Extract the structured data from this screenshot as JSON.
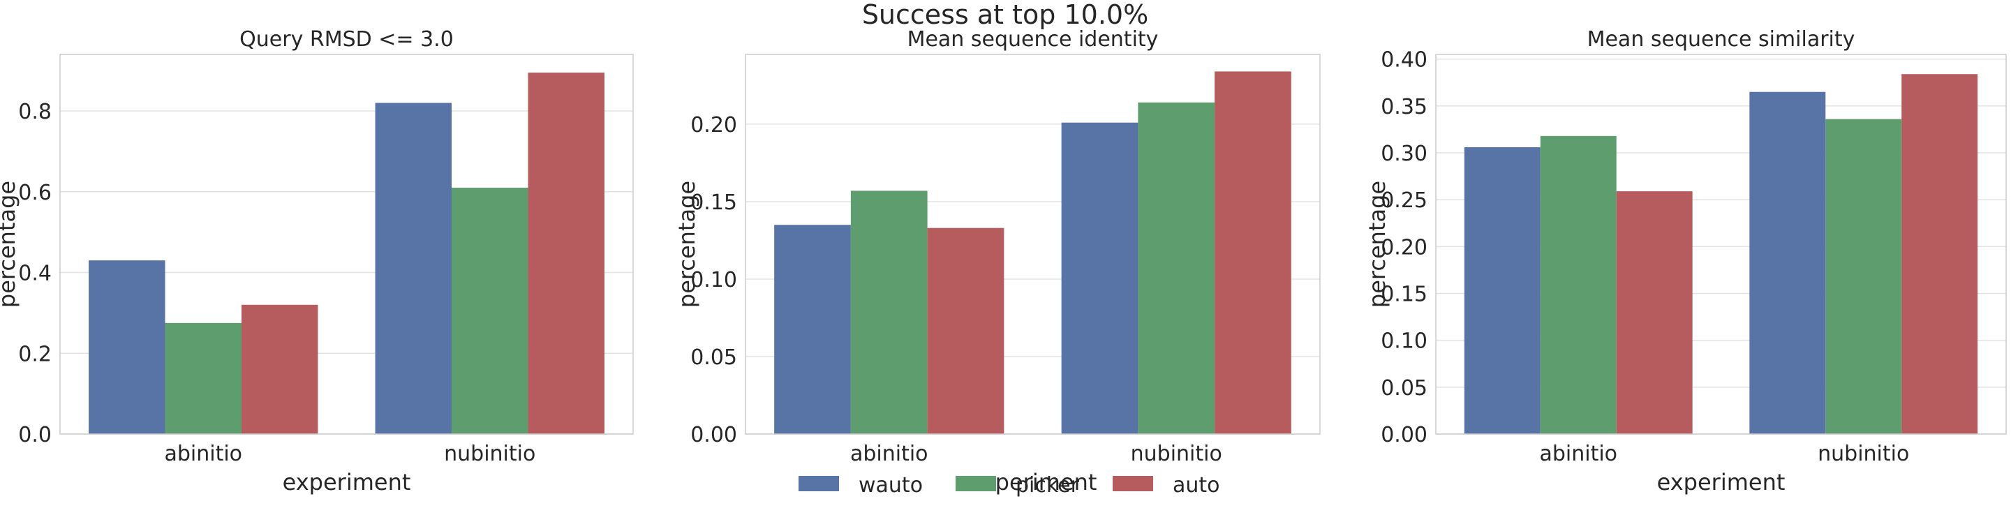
{
  "suptitle": "Success at top 10.0%",
  "legend": {
    "placement": "bottom-center",
    "entries": [
      {
        "label": "wauto",
        "color": "#5874a6"
      },
      {
        "label": "picker",
        "color": "#5e9e6e"
      },
      {
        "label": "auto",
        "color": "#b75c5e"
      }
    ]
  },
  "chart_data": [
    {
      "type": "bar",
      "title": "Query RMSD <= 3.0",
      "xlabel": "experiment",
      "ylabel": "percentage",
      "categories": [
        "abinitio",
        "nubinitio"
      ],
      "ylim": [
        0,
        0.94
      ],
      "yticks": [
        0.0,
        0.2,
        0.4,
        0.6,
        0.8
      ],
      "yticklabels": [
        "0.0",
        "0.2",
        "0.4",
        "0.6",
        "0.8"
      ],
      "grid": true,
      "series": [
        {
          "name": "wauto",
          "values": [
            0.43,
            0.82
          ]
        },
        {
          "name": "picker",
          "values": [
            0.275,
            0.61
          ]
        },
        {
          "name": "auto",
          "values": [
            0.32,
            0.895
          ]
        }
      ]
    },
    {
      "type": "bar",
      "title": "Mean sequence identity",
      "xlabel": "experiment",
      "ylabel": "percentage",
      "categories": [
        "abinitio",
        "nubinitio"
      ],
      "ylim": [
        0,
        0.245
      ],
      "yticks": [
        0.0,
        0.05,
        0.1,
        0.15,
        0.2
      ],
      "yticklabels": [
        "0.00",
        "0.05",
        "0.10",
        "0.15",
        "0.20"
      ],
      "grid": true,
      "series": [
        {
          "name": "wauto",
          "values": [
            0.135,
            0.201
          ]
        },
        {
          "name": "picker",
          "values": [
            0.157,
            0.214
          ]
        },
        {
          "name": "auto",
          "values": [
            0.133,
            0.234
          ]
        }
      ]
    },
    {
      "type": "bar",
      "title": "Mean sequence similarity",
      "xlabel": "experiment",
      "ylabel": "percentage",
      "categories": [
        "abinitio",
        "nubinitio"
      ],
      "ylim": [
        0,
        0.405
      ],
      "yticks": [
        0.0,
        0.05,
        0.1,
        0.15,
        0.2,
        0.25,
        0.3,
        0.35,
        0.4
      ],
      "yticklabels": [
        "0.00",
        "0.05",
        "0.10",
        "0.15",
        "0.20",
        "0.25",
        "0.30",
        "0.35",
        "0.40"
      ],
      "grid": true,
      "series": [
        {
          "name": "wauto",
          "values": [
            0.306,
            0.365
          ]
        },
        {
          "name": "picker",
          "values": [
            0.318,
            0.336
          ]
        },
        {
          "name": "auto",
          "values": [
            0.259,
            0.384
          ]
        }
      ]
    }
  ]
}
